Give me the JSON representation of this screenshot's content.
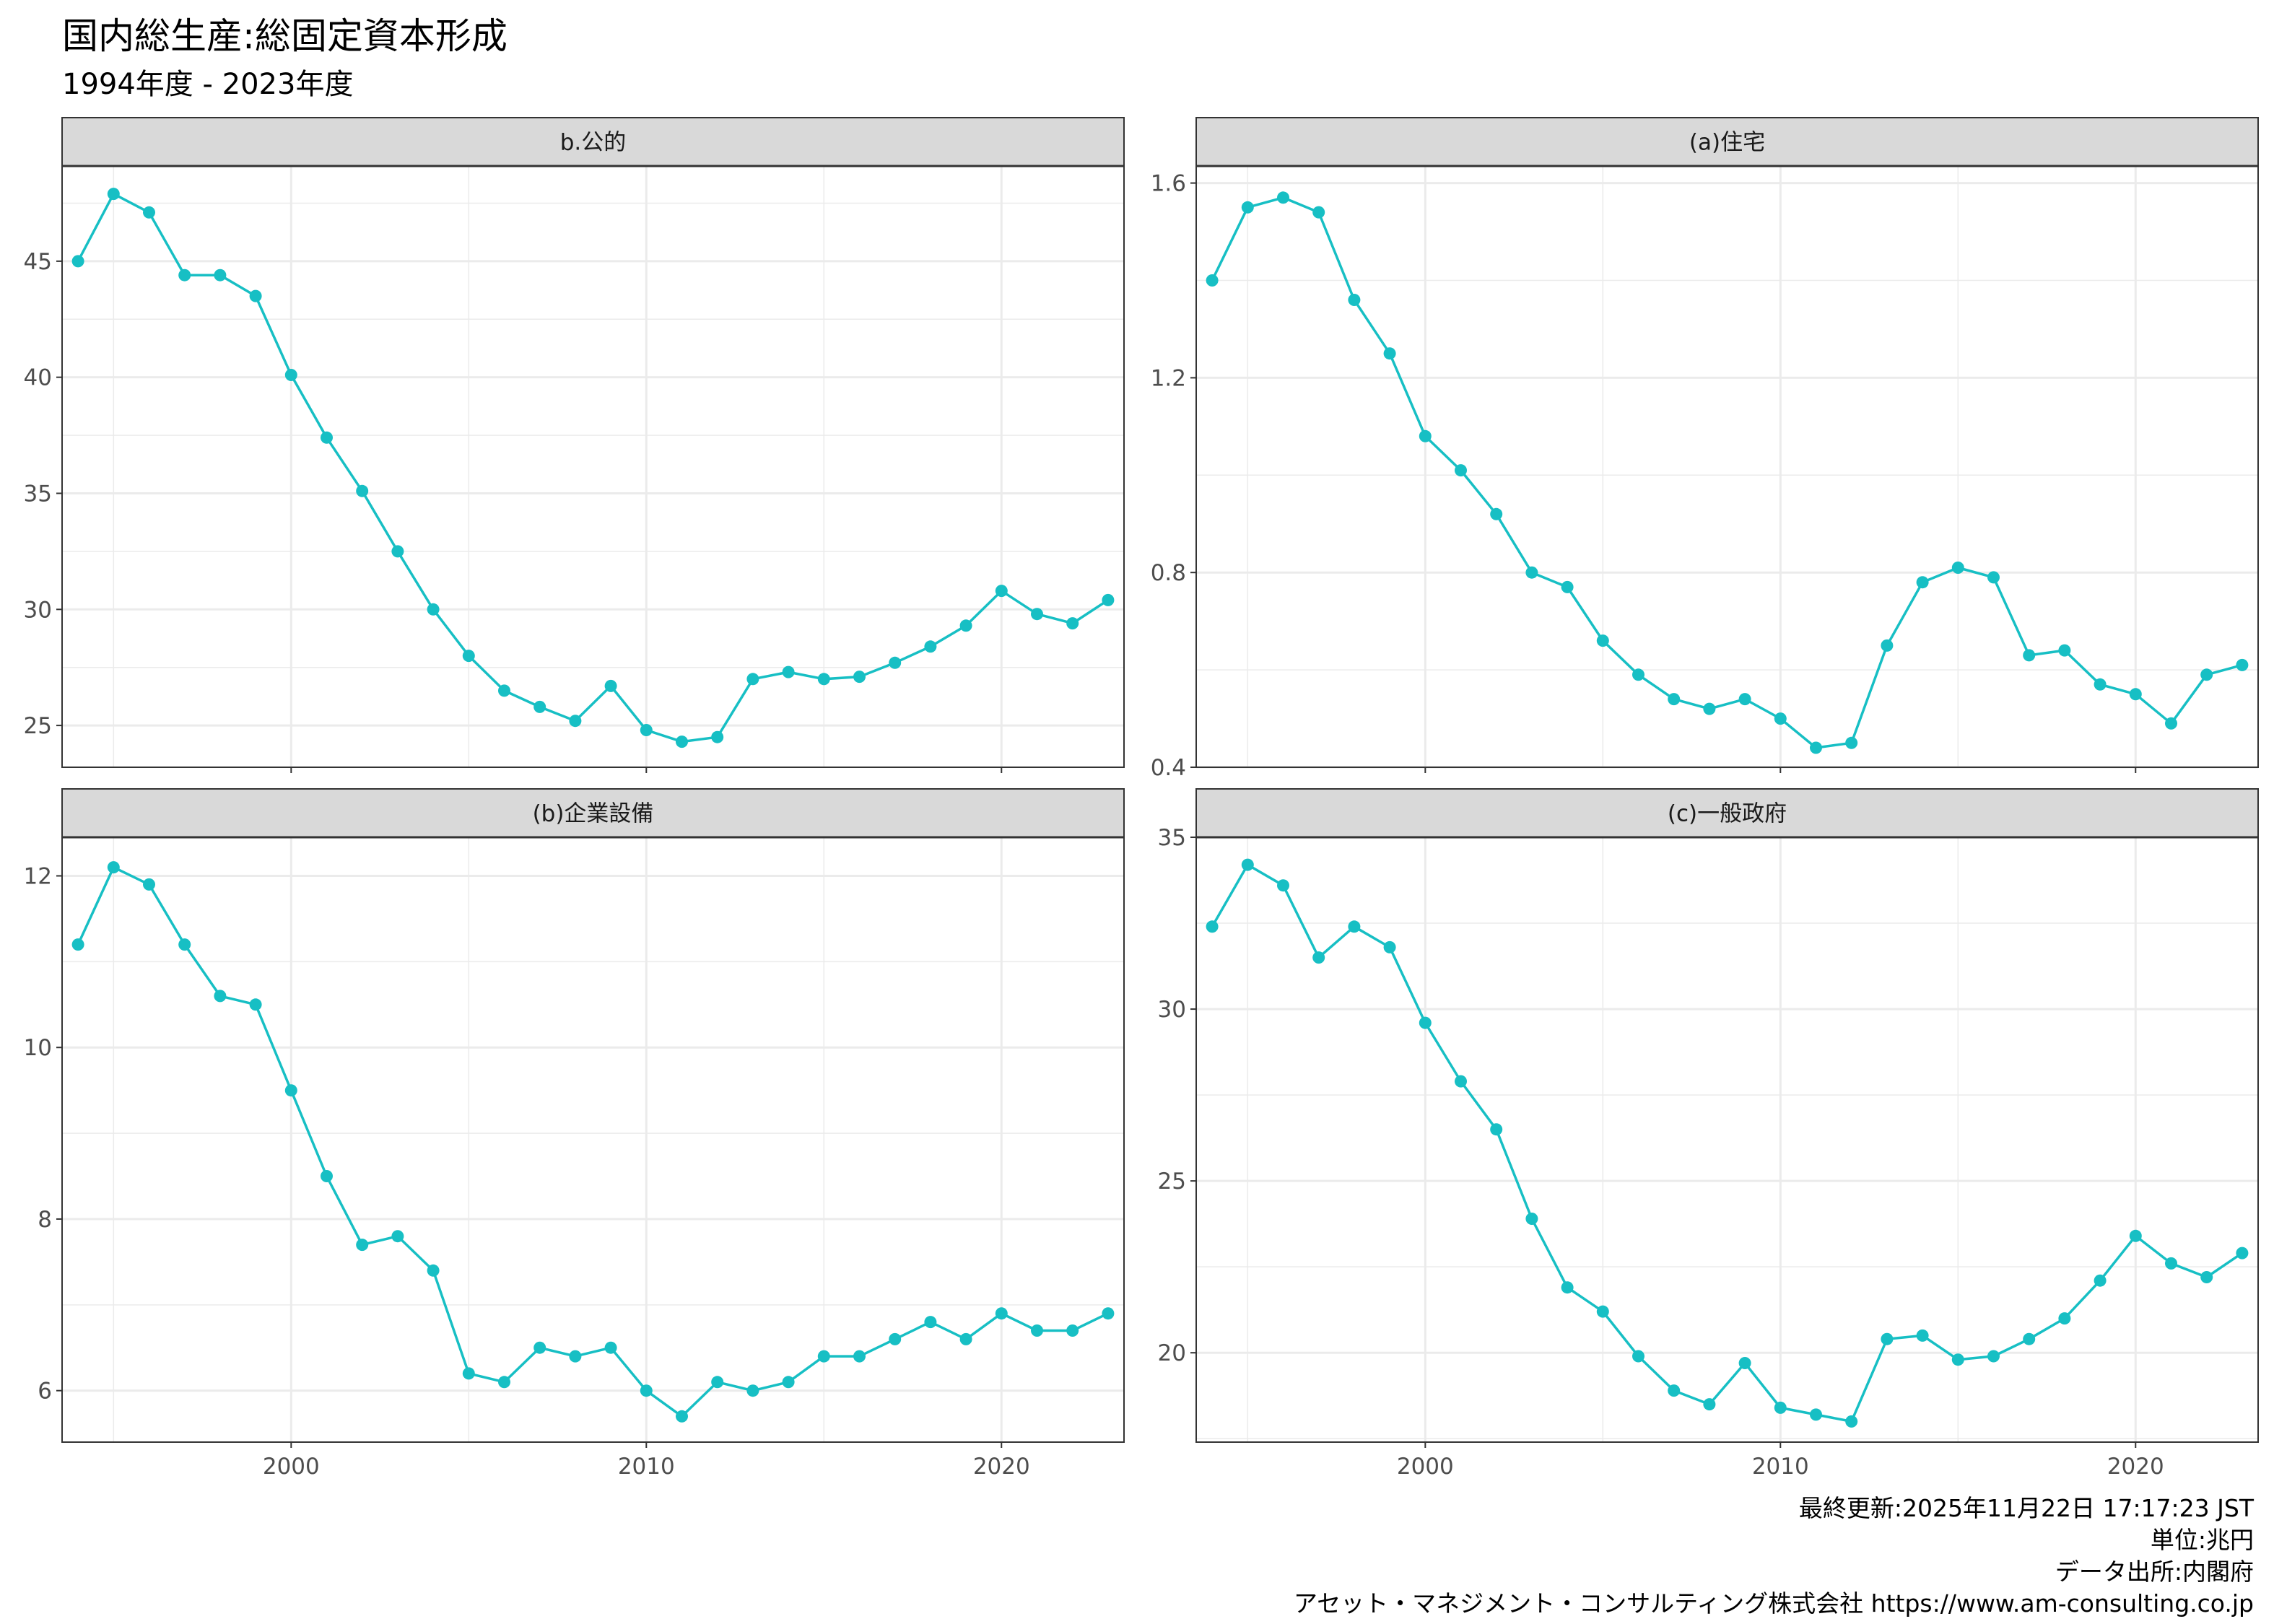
{
  "title": "国内総生産:総固定資本形成",
  "subtitle": "1994年度 - 2023年度",
  "caption": {
    "updated": "最終更新:2025年11月22日 17:17:23 JST",
    "unit": "単位:兆円",
    "source": "データ出所:内閣府",
    "credit": "アセット・マネジメント・コンサルティング株式会社 https://www.am-consulting.co.jp"
  },
  "colors": {
    "line": "#17BFC4",
    "strip": "#D9D9D9",
    "grid": "#EBEBEB",
    "panel_border": "#333333"
  },
  "chart_data": [
    {
      "type": "line",
      "title": "b.公的",
      "x": [
        1994,
        1995,
        1996,
        1997,
        1998,
        1999,
        2000,
        2001,
        2002,
        2003,
        2004,
        2005,
        2006,
        2007,
        2008,
        2009,
        2010,
        2011,
        2012,
        2013,
        2014,
        2015,
        2016,
        2017,
        2018,
        2019,
        2020,
        2021,
        2022,
        2023
      ],
      "values": [
        45.0,
        47.9,
        47.1,
        44.4,
        44.4,
        43.5,
        40.1,
        37.4,
        35.1,
        32.5,
        30.0,
        28.0,
        26.5,
        25.8,
        25.2,
        26.7,
        24.8,
        24.3,
        24.5,
        27.0,
        27.3,
        27.0,
        27.1,
        27.7,
        28.4,
        29.3,
        30.8,
        29.8,
        29.4,
        30.4
      ],
      "xlim": [
        1993.55,
        2023.45
      ],
      "ylim": [
        23.2,
        49.1
      ],
      "yticks": [
        25,
        30,
        35,
        40,
        45
      ],
      "xticks": [
        2000,
        2010,
        2020
      ],
      "show_x_labels": false,
      "grid": true
    },
    {
      "type": "line",
      "title": "(a)住宅",
      "x": [
        1994,
        1995,
        1996,
        1997,
        1998,
        1999,
        2000,
        2001,
        2002,
        2003,
        2004,
        2005,
        2006,
        2007,
        2008,
        2009,
        2010,
        2011,
        2012,
        2013,
        2014,
        2015,
        2016,
        2017,
        2018,
        2019,
        2020,
        2021,
        2022,
        2023
      ],
      "values": [
        1.4,
        1.55,
        1.57,
        1.54,
        1.36,
        1.25,
        1.08,
        1.01,
        0.92,
        0.8,
        0.77,
        0.66,
        0.59,
        0.54,
        0.52,
        0.54,
        0.5,
        0.44,
        0.45,
        0.65,
        0.78,
        0.81,
        0.79,
        0.63,
        0.64,
        0.57,
        0.55,
        0.49,
        0.59,
        0.61
      ],
      "xlim": [
        1993.55,
        2023.45
      ],
      "ylim": [
        0.4,
        1.635
      ],
      "yticks": [
        0.4,
        0.8,
        1.2,
        1.6
      ],
      "xticks": [
        2000,
        2010,
        2020
      ],
      "show_x_labels": false,
      "grid": true
    },
    {
      "type": "line",
      "title": "(b)企業設備",
      "x": [
        1994,
        1995,
        1996,
        1997,
        1998,
        1999,
        2000,
        2001,
        2002,
        2003,
        2004,
        2005,
        2006,
        2007,
        2008,
        2009,
        2010,
        2011,
        2012,
        2013,
        2014,
        2015,
        2016,
        2017,
        2018,
        2019,
        2020,
        2021,
        2022,
        2023
      ],
      "values": [
        11.2,
        12.1,
        11.9,
        11.2,
        10.6,
        10.5,
        9.5,
        8.5,
        7.7,
        7.8,
        7.4,
        6.2,
        6.1,
        6.5,
        6.4,
        6.5,
        6.0,
        5.7,
        6.1,
        6.0,
        6.1,
        6.4,
        6.4,
        6.6,
        6.8,
        6.6,
        6.9,
        6.7,
        6.7,
        6.9
      ],
      "xlim": [
        1993.55,
        2023.45
      ],
      "ylim": [
        5.4,
        12.45
      ],
      "yticks": [
        6,
        8,
        10,
        12
      ],
      "xticks": [
        2000,
        2010,
        2020
      ],
      "show_x_labels": true,
      "grid": true
    },
    {
      "type": "line",
      "title": "(c)一般政府",
      "x": [
        1994,
        1995,
        1996,
        1997,
        1998,
        1999,
        2000,
        2001,
        2002,
        2003,
        2004,
        2005,
        2006,
        2007,
        2008,
        2009,
        2010,
        2011,
        2012,
        2013,
        2014,
        2015,
        2016,
        2017,
        2018,
        2019,
        2020,
        2021,
        2022,
        2023
      ],
      "values": [
        32.4,
        34.2,
        33.6,
        31.5,
        32.4,
        31.8,
        29.6,
        27.9,
        26.5,
        23.9,
        21.9,
        21.2,
        19.9,
        18.9,
        18.5,
        19.7,
        18.4,
        18.2,
        18.0,
        20.4,
        20.5,
        19.8,
        19.9,
        20.4,
        21.0,
        22.1,
        23.4,
        22.6,
        22.2,
        22.9
      ],
      "xlim": [
        1993.55,
        2023.45
      ],
      "ylim": [
        17.4,
        35.0
      ],
      "yticks": [
        20,
        25,
        30,
        35
      ],
      "xticks": [
        2000,
        2010,
        2020
      ],
      "show_x_labels": true,
      "grid": true
    }
  ]
}
